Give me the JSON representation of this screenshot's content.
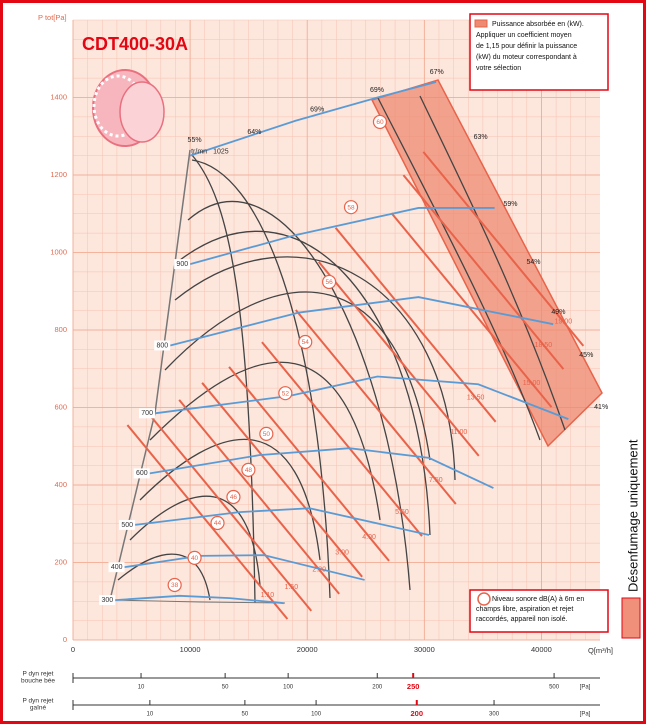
{
  "chart_data": {
    "type": "line",
    "title": "CDT400-30A",
    "y_label": "P tot[Pa]",
    "x_label": "Q[m³/h]",
    "xlim": [
      0,
      45000
    ],
    "ylim": [
      0,
      1600
    ],
    "xticks": [
      0,
      10000,
      20000,
      30000,
      40000
    ],
    "yticks": [
      0,
      200,
      400,
      600,
      800,
      1000,
      1200,
      1400
    ],
    "grid": true,
    "speed_label": "tr/mn",
    "series": [
      {
        "name": "1025",
        "color": "#5b9bd5",
        "x": [
          10000,
          19000,
          26000,
          31000
        ],
        "values": [
          1250,
          1340,
          1400,
          1440
        ]
      },
      {
        "name": "900",
        "color": "#5b9bd5",
        "x": [
          10000,
          19000,
          29500,
          36000
        ],
        "values": [
          970,
          1045,
          1115,
          1115
        ]
      },
      {
        "name": "800",
        "color": "#5b9bd5",
        "x": [
          8300,
          19300,
          29500,
          41000
        ],
        "values": [
          760,
          845,
          885,
          815
        ]
      },
      {
        "name": "700",
        "color": "#5b9bd5",
        "x": [
          7000,
          18500,
          26000,
          34600,
          42300
        ],
        "values": [
          585,
          630,
          680,
          660,
          570
        ]
      },
      {
        "name": "600",
        "color": "#5b9bd5",
        "x": [
          6550,
          15900,
          23600,
          30400,
          35900
        ],
        "values": [
          430,
          477,
          495,
          470,
          392
        ]
      },
      {
        "name": "500",
        "color": "#5b9bd5",
        "x": [
          5300,
          14200,
          20200,
          30400
        ],
        "values": [
          297,
          330,
          340,
          271
        ]
      },
      {
        "name": "400",
        "color": "#5b9bd5",
        "x": [
          4400,
          10800,
          16300,
          24900
        ],
        "values": [
          188,
          217,
          219,
          155
        ]
      },
      {
        "name": "300",
        "color": "#5b9bd5",
        "x": [
          3600,
          9100,
          13400,
          18000
        ],
        "values": [
          103,
          114,
          108,
          95
        ]
      }
    ],
    "efficiency_labels": [
      {
        "label": "55%",
        "x": 10380,
        "y": 1290
      },
      {
        "label": "64%",
        "x": 15490,
        "y": 1311
      },
      {
        "label": "69%",
        "x": 20850,
        "y": 1368
      },
      {
        "label": "69%",
        "x": 25960,
        "y": 1419
      },
      {
        "label": "67%",
        "x": 31060,
        "y": 1466
      },
      {
        "label": "63%",
        "x": 34810,
        "y": 1298
      },
      {
        "label": "59%",
        "x": 37360,
        "y": 1125
      },
      {
        "label": "54%",
        "x": 39320,
        "y": 975
      },
      {
        "label": "49%",
        "x": 41450,
        "y": 846
      },
      {
        "label": "45%",
        "x": 43830,
        "y": 735
      },
      {
        "label": "41%",
        "x": 45100,
        "y": 601
      }
    ],
    "power_color": "#e8634a",
    "power_labels": [
      {
        "value": 1.1,
        "label": "1.10",
        "x": 16600,
        "y": 116
      },
      {
        "value": 1.5,
        "label": "1.50",
        "x": 18640,
        "y": 137
      },
      {
        "value": 2.2,
        "label": "2.20",
        "x": 21020,
        "y": 181
      },
      {
        "value": 3,
        "label": "3.00",
        "x": 22980,
        "y": 225
      },
      {
        "value": 4,
        "label": "4.00",
        "x": 25280,
        "y": 266
      },
      {
        "value": 5.5,
        "label": "5.50",
        "x": 28090,
        "y": 330
      },
      {
        "value": 7.5,
        "label": "7.50",
        "x": 30980,
        "y": 413
      },
      {
        "value": 11,
        "label": "11.00",
        "x": 32940,
        "y": 537
      },
      {
        "value": 13.5,
        "label": "13.50",
        "x": 34380,
        "y": 625
      },
      {
        "value": 15,
        "label": "15.00",
        "x": 39150,
        "y": 663
      },
      {
        "value": 18.5,
        "label": "18.50",
        "x": 40170,
        "y": 761
      },
      {
        "value": 19,
        "label": "19.00",
        "x": 41870,
        "y": 821
      }
    ],
    "noise_labels": [
      {
        "value": 38,
        "x": 8680,
        "y": 142
      },
      {
        "value": 40,
        "x": 10380,
        "y": 212
      },
      {
        "value": 44,
        "x": 12340,
        "y": 302
      },
      {
        "value": 46,
        "x": 13700,
        "y": 369
      },
      {
        "value": 48,
        "x": 14980,
        "y": 439
      },
      {
        "value": 50,
        "x": 16510,
        "y": 532
      },
      {
        "value": 52,
        "x": 18130,
        "y": 637
      },
      {
        "value": 54,
        "x": 19830,
        "y": 769
      },
      {
        "value": 56,
        "x": 21870,
        "y": 924
      },
      {
        "value": 58,
        "x": 23740,
        "y": 1117
      },
      {
        "value": 60,
        "x": 26210,
        "y": 1337
      }
    ],
    "power_legend": [
      "Puissance absorbée en (kW).",
      "Appliquer un coefficient moyen",
      "de 1,15 pour définir la puissance",
      "(kW) du moteur correspondant à",
      "votre sélection"
    ],
    "noise_legend": [
      "Niveau sonore dB(A) à 6m en",
      "champs libre, aspiration et rejet",
      "raccordés, appareil non isolé."
    ],
    "side_label": "Désenfumage uniquement",
    "dyn_scales": [
      {
        "label": [
          "P dyn rejet",
          "bouche bée"
        ],
        "lim": [
          0,
          600
        ],
        "ticks": [
          10,
          50,
          100,
          200,
          250,
          500
        ],
        "highlight": 250,
        "unit": "[Pa]"
      },
      {
        "label": [
          "P dyn rejet",
          "gaîné"
        ],
        "lim": [
          0,
          470
        ],
        "ticks": [
          10,
          50,
          100,
          200,
          300
        ],
        "highlight": 200,
        "unit": "[Pa]"
      }
    ]
  }
}
